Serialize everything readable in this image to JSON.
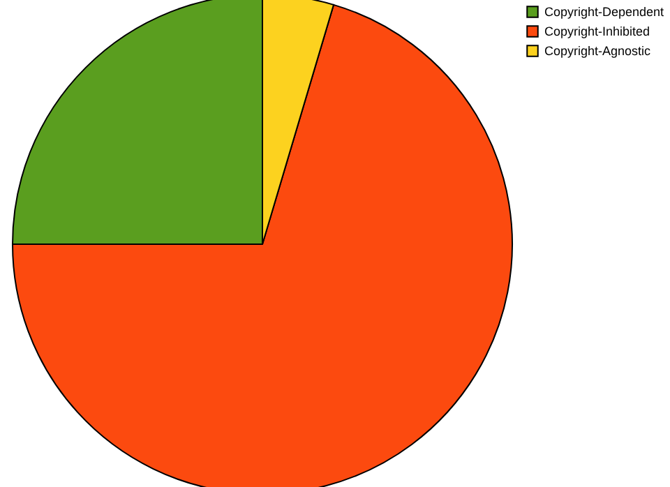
{
  "chart_data": {
    "type": "pie",
    "categories": [
      "Copyright-Dependent",
      "Copyright-Inhibited",
      "Copyright-Agnostic"
    ],
    "values": [
      25,
      70.4,
      4.6
    ],
    "colors": [
      "#5a9e1f",
      "#fc4a0f",
      "#fcd21f"
    ],
    "legend": "top right"
  }
}
